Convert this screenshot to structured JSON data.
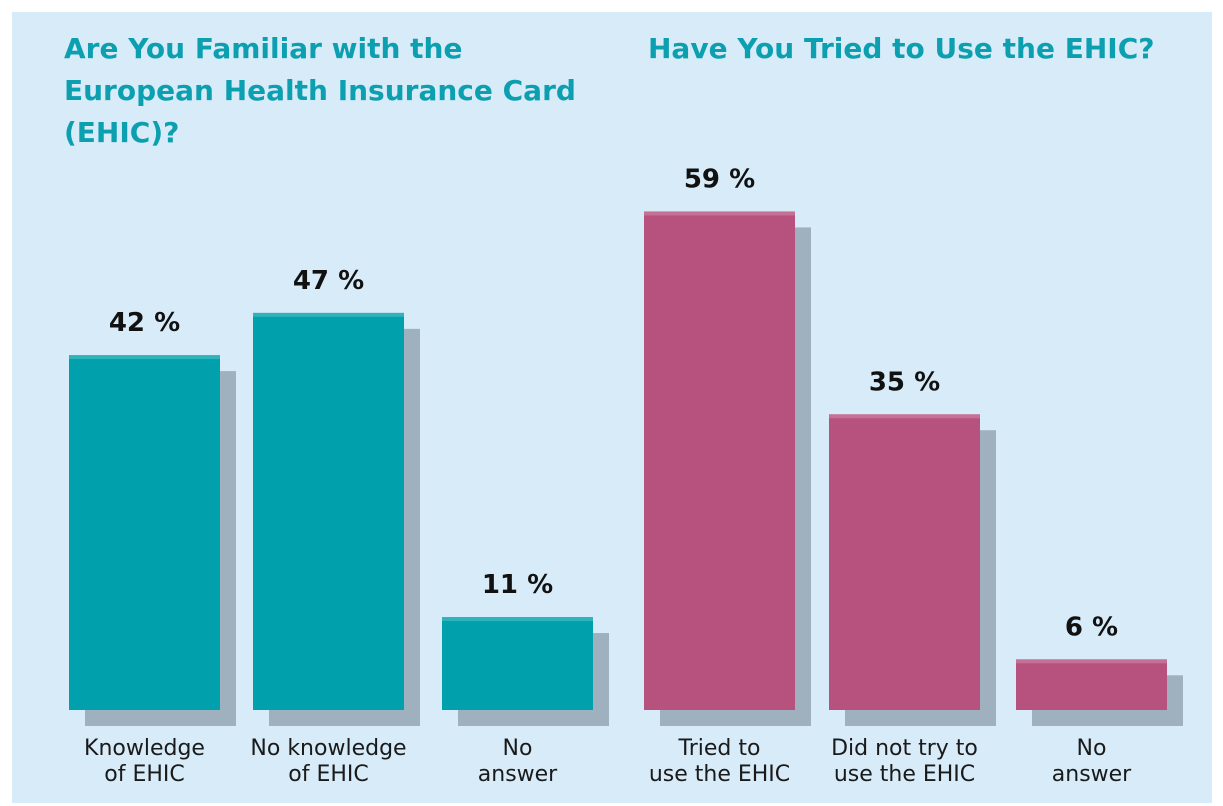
{
  "chart_data": [
    {
      "type": "bar",
      "title": "Are You Familiar with the European Health Insurance Card (EHIC)?",
      "categories": [
        "Knowledge\nof EHIC",
        "No knowledge\nof EHIC",
        "No\nanswer"
      ],
      "values": [
        42,
        47,
        11
      ],
      "value_labels": [
        "42 %",
        "47 %",
        "11 %"
      ],
      "unit": "%",
      "ylim": [
        0,
        60
      ],
      "grid": false,
      "bar_color": "#00a1ac"
    },
    {
      "type": "bar",
      "title": "Have You Tried to Use the EHIC?",
      "categories": [
        "Tried to\nuse the EHIC",
        "Did not try to\nuse the EHIC",
        "No\nanswer"
      ],
      "values": [
        59,
        35,
        6
      ],
      "value_labels": [
        "59 %",
        "35 %",
        "6 %"
      ],
      "unit": "%",
      "ylim": [
        0,
        60
      ],
      "grid": false,
      "bar_color": "#b7527e"
    }
  ],
  "colors": {
    "background": "#d7ebf8",
    "title": "#0b9fb0",
    "shadow": "#9fb0bf"
  }
}
